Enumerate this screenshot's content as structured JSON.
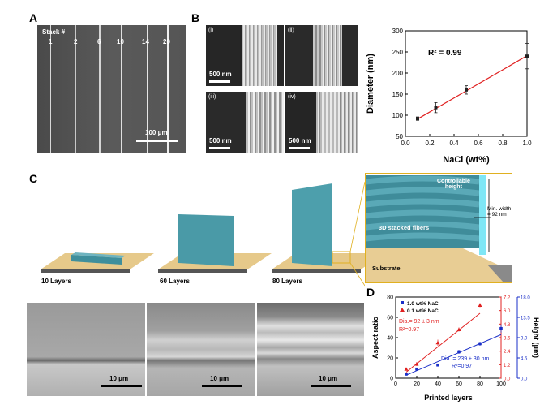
{
  "panel_a": {
    "label": "A",
    "stack_title": "Stack #",
    "stack_numbers": [
      "1",
      "2",
      "6",
      "10",
      "14",
      "20"
    ],
    "scale": "100 μm"
  },
  "panel_b": {
    "label": "B",
    "sublabels": [
      "(i)",
      "(ii)",
      "(iii)",
      "(iv)"
    ],
    "scales": [
      "500 nm",
      "500 nm",
      "500 nm",
      "500 nm"
    ]
  },
  "panel_c": {
    "label": "C",
    "layers": [
      "10 Layers",
      "60 Layers",
      "80 Layers"
    ],
    "inset": {
      "height_text": [
        "Controllable",
        "height"
      ],
      "width_text": [
        "Min. width",
        "= 92 nm"
      ],
      "fibers_text": "3D stacked fibers",
      "substrate_text": "Substrate"
    },
    "bottom_scales": [
      "10 μm",
      "10 μm",
      "10 μm"
    ]
  },
  "panel_d": {
    "label": "D",
    "colors": {
      "blue": "#1a2fc8",
      "red": "#e02020"
    },
    "legend": [
      "1.0 wt% NaCl",
      "0.1 wt% NaCl"
    ],
    "annot_red": [
      "Dia.= 92 ± 3 nm",
      "R²=0.97"
    ],
    "annot_blue": [
      "Dia. = 239 ± 30 nm",
      "R²=0.97"
    ]
  },
  "chart_data": [
    {
      "type": "line",
      "xlabel": "NaCl (wt%)",
      "ylabel": "Diameter (nm)",
      "annotation": "R² = 0.99",
      "xlim": [
        0.0,
        1.0
      ],
      "ylim": [
        50,
        300
      ],
      "xticks": [
        "0.0",
        "0.2",
        "0.4",
        "0.6",
        "0.8",
        "1.0"
      ],
      "yticks": [
        "50",
        "100",
        "150",
        "200",
        "250",
        "300"
      ],
      "x": [
        0.1,
        0.25,
        0.5,
        1.0
      ],
      "y": [
        92,
        118,
        160,
        240
      ],
      "err": [
        4,
        12,
        10,
        30
      ],
      "fit": [
        [
          0.1,
          91
        ],
        [
          1.0,
          241
        ]
      ],
      "colors": {
        "points": "#222222",
        "fit": "#e02020"
      }
    },
    {
      "type": "scatter",
      "xlabel": "Printed layers",
      "ylabel_left": "Aspect ratio",
      "ylabel_right": "Height (μm)",
      "xlim": [
        0,
        100
      ],
      "ylim_left": [
        0,
        80
      ],
      "ylim_right_red": [
        0,
        7.2
      ],
      "ylim_right_blue": [
        0,
        18
      ],
      "xticks": [
        "0",
        "20",
        "40",
        "60",
        "80",
        "100"
      ],
      "yticks_left": [
        "0",
        "20",
        "40",
        "60",
        "80"
      ],
      "yticks_right_red": [
        "0.0",
        "1.2",
        "2.4",
        "3.6",
        "4.8",
        "6.0",
        "7.2"
      ],
      "yticks_right_blue": [
        "0.0",
        "4.5",
        "9.0",
        "13.5",
        "18.0"
      ],
      "series": [
        {
          "name": "1.0 wt% NaCl",
          "x": [
            10,
            20,
            40,
            60,
            80,
            100
          ],
          "y": [
            4,
            9,
            13,
            26,
            34,
            49
          ],
          "err": [
            1,
            1,
            1,
            2,
            2,
            4
          ],
          "fit": [
            [
              10,
              3
            ],
            [
              100,
              43
            ]
          ]
        },
        {
          "name": "0.1 wt% NaCl",
          "x": [
            10,
            20,
            40,
            60,
            80
          ],
          "y": [
            9,
            14,
            35,
            48,
            72
          ],
          "err": [
            1,
            2,
            3,
            2,
            2
          ],
          "fit": [
            [
              10,
              6
            ],
            [
              80,
              64
            ]
          ]
        }
      ]
    }
  ]
}
